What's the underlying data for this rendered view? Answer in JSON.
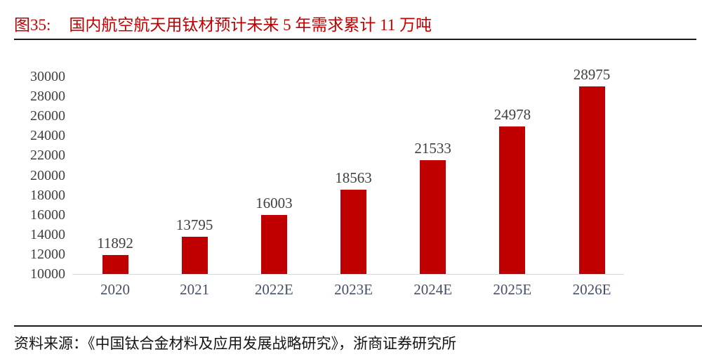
{
  "figure": {
    "label": "图35:",
    "title": "国内航空航天用钛材预计未来 5 年需求累计 11 万吨"
  },
  "source": {
    "label": "资料来源：",
    "text": "《中国钛合金材料及应用发展战略研究》，浙商证券研究所"
  },
  "colors": {
    "bar": "#c00000",
    "title": "#c00000",
    "value_label": "#3f3f3f",
    "x_label": "#44506a",
    "y_label": "#3f3f3f",
    "baseline": "#d9d9d9",
    "rule": "#1a1a1a"
  },
  "chart_data": {
    "type": "bar",
    "title": "国内航空航天用钛材预计未来 5 年需求累计 11 万吨",
    "categories": [
      "2020",
      "2021",
      "2022E",
      "2023E",
      "2024E",
      "2025E",
      "2026E"
    ],
    "values": [
      11892,
      13795,
      16003,
      18563,
      21533,
      24978,
      28975
    ],
    "xlabel": "",
    "ylabel": "",
    "ylim": [
      10000,
      30000
    ],
    "ytick_step": 2000,
    "ytick_labels": [
      "30000",
      "28000",
      "26000",
      "24000",
      "22000",
      "20000",
      "18000",
      "16000",
      "14000",
      "12000",
      "10000"
    ],
    "grid": false,
    "legend_position": "none",
    "data_labels": true,
    "bar_color": "#c00000"
  }
}
